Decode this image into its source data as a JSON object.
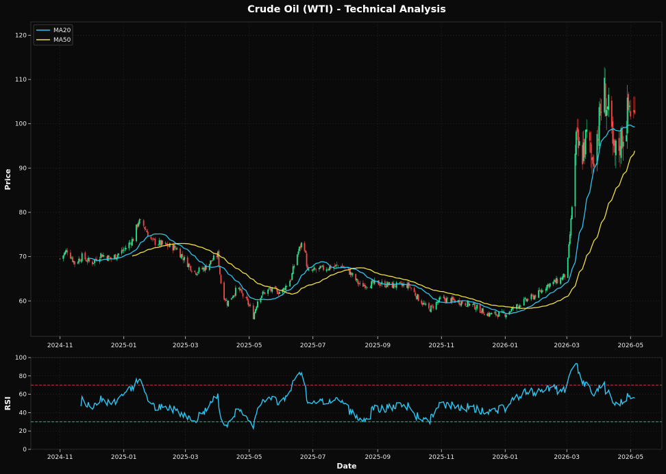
{
  "chart_data": [
    {
      "type": "candlestick",
      "title": "Crude Oil (WTI) - Technical Analysis",
      "xlabel": "",
      "ylabel": "Price",
      "ylim": [
        52,
        123
      ],
      "y_ticks": [
        60,
        70,
        80,
        90,
        100,
        110,
        120
      ],
      "x_range": [
        "2024-10-04",
        "2026-05-31"
      ],
      "x_ticks": [
        "2024-11",
        "2025-01",
        "2025-03",
        "2025-05",
        "2025-07",
        "2025-09",
        "2025-11",
        "2026-01",
        "2026-03",
        "2026-05"
      ],
      "grid": true,
      "legend_position": "top-left",
      "close_anchors": [
        [
          "2024-11-01",
          69.5
        ],
        [
          "2024-11-08",
          71.5
        ],
        [
          "2024-11-15",
          68.5
        ],
        [
          "2024-11-22",
          70.0
        ],
        [
          "2024-12-01",
          68.5
        ],
        [
          "2024-12-10",
          70.5
        ],
        [
          "2024-12-20",
          69.5
        ],
        [
          "2025-01-01",
          71.5
        ],
        [
          "2025-01-10",
          74.0
        ],
        [
          "2025-01-15",
          78.0
        ],
        [
          "2025-01-20",
          77.0
        ],
        [
          "2025-01-28",
          73.5
        ],
        [
          "2025-02-10",
          72.5
        ],
        [
          "2025-02-20",
          72.0
        ],
        [
          "2025-03-01",
          69.0
        ],
        [
          "2025-03-10",
          66.5
        ],
        [
          "2025-03-20",
          67.5
        ],
        [
          "2025-04-01",
          70.5
        ],
        [
          "2025-04-05",
          62.0
        ],
        [
          "2025-04-10",
          59.5
        ],
        [
          "2025-04-20",
          63.0
        ],
        [
          "2025-05-01",
          59.0
        ],
        [
          "2025-05-05",
          56.5
        ],
        [
          "2025-05-10",
          61.0
        ],
        [
          "2025-05-20",
          62.5
        ],
        [
          "2025-06-01",
          62.0
        ],
        [
          "2025-06-10",
          65.0
        ],
        [
          "2025-06-15",
          70.0
        ],
        [
          "2025-06-22",
          74.0
        ],
        [
          "2025-06-26",
          66.5
        ],
        [
          "2025-07-05",
          67.0
        ],
        [
          "2025-07-15",
          67.5
        ],
        [
          "2025-07-28",
          68.0
        ],
        [
          "2025-08-05",
          66.5
        ],
        [
          "2025-08-15",
          63.5
        ],
        [
          "2025-09-01",
          64.0
        ],
        [
          "2025-09-15",
          63.5
        ],
        [
          "2025-10-01",
          63.5
        ],
        [
          "2025-10-10",
          60.5
        ],
        [
          "2025-10-20",
          58.0
        ],
        [
          "2025-11-01",
          60.5
        ],
        [
          "2025-11-15",
          60.0
        ],
        [
          "2025-12-01",
          59.0
        ],
        [
          "2025-12-15",
          57.0
        ],
        [
          "2026-01-01",
          57.0
        ],
        [
          "2026-01-10",
          58.5
        ],
        [
          "2026-01-20",
          60.0
        ],
        [
          "2026-02-01",
          61.5
        ],
        [
          "2026-02-10",
          63.5
        ],
        [
          "2026-02-20",
          64.5
        ],
        [
          "2026-03-01",
          66.0
        ],
        [
          "2026-03-05",
          78.0
        ],
        [
          "2026-03-10",
          95.0
        ],
        [
          "2026-03-15",
          93.0
        ],
        [
          "2026-03-20",
          96.5
        ],
        [
          "2026-03-25",
          92.0
        ],
        [
          "2026-04-01",
          100.0
        ],
        [
          "2026-04-05",
          108.0
        ],
        [
          "2026-04-10",
          102.0
        ],
        [
          "2026-04-15",
          92.0
        ],
        [
          "2026-04-20",
          95.0
        ],
        [
          "2026-04-25",
          99.0
        ],
        [
          "2026-04-30",
          104.0
        ],
        [
          "2026-05-05",
          101.0
        ]
      ],
      "series": [
        {
          "name": "MA20",
          "color": "#2ec5f0",
          "window": 20
        },
        {
          "name": "MA50",
          "color": "#f0e040",
          "window": 50
        }
      ],
      "candle_colors": {
        "up": "#20e890",
        "down": "#ee4a4a"
      }
    },
    {
      "type": "line",
      "title": "",
      "xlabel": "Date",
      "ylabel": "RSI",
      "ylim": [
        0,
        100
      ],
      "y_ticks": [
        0,
        20,
        40,
        60,
        80,
        100
      ],
      "period": 14,
      "overbought": 70,
      "oversold": 30,
      "colors": {
        "line": "#2ec5f0",
        "overbought": "#e84545",
        "oversold": "#20d6a0"
      }
    }
  ]
}
